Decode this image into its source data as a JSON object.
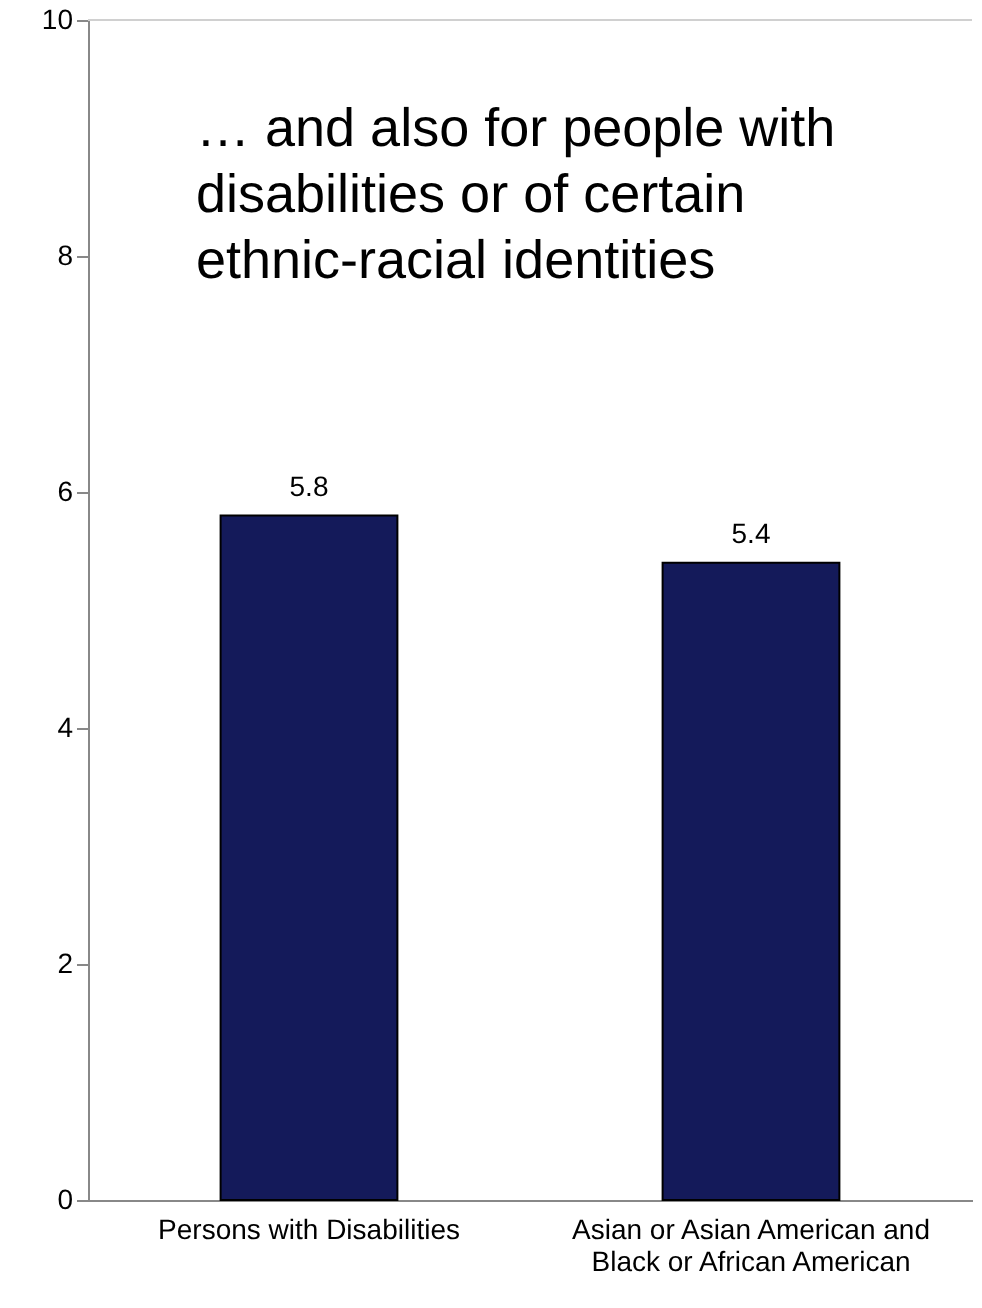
{
  "chart_data": {
    "type": "bar",
    "title": "… and also for people with disabilities or of certain ethnic-racial identities",
    "categories": [
      "Persons with Disabilities",
      "Asian or Asian American and Black or African American"
    ],
    "values": [
      5.8,
      5.4
    ],
    "color": "#141a5a",
    "ylim": [
      0,
      10
    ],
    "yticks": [
      0,
      2,
      4,
      6,
      8,
      10
    ],
    "grid": false,
    "data_labels": true
  }
}
